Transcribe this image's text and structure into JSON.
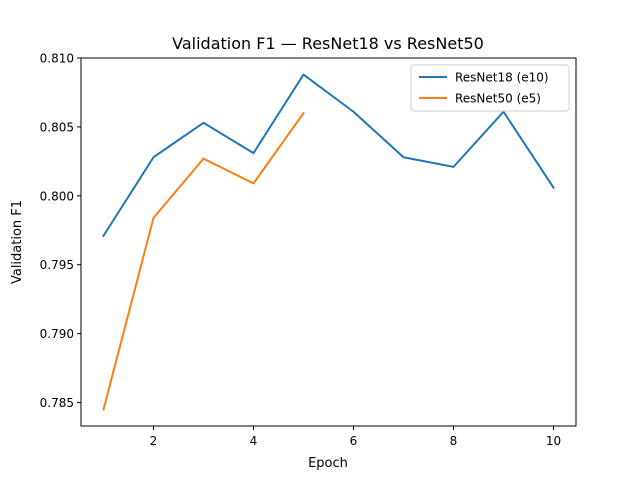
{
  "chart_data": {
    "type": "line",
    "title": "Validation F1 — ResNet18 vs ResNet50",
    "xlabel": "Epoch",
    "ylabel": "Validation F1",
    "xlim": [
      0.55,
      10.45
    ],
    "ylim": [
      0.7833,
      0.81
    ],
    "xticks": [
      2,
      4,
      6,
      8,
      10
    ],
    "xtick_labels": [
      "2",
      "4",
      "6",
      "8",
      "10"
    ],
    "yticks": [
      0.785,
      0.79,
      0.795,
      0.8,
      0.805,
      0.81
    ],
    "ytick_labels": [
      "0.785",
      "0.790",
      "0.795",
      "0.800",
      "0.805",
      "0.810"
    ],
    "grid": false,
    "legend_position": "top-right",
    "series": [
      {
        "name": "ResNet18 (e10)",
        "color": "#1f77b4",
        "x": [
          1,
          2,
          3,
          4,
          5,
          6,
          7,
          8,
          9,
          10
        ],
        "y": [
          0.7971,
          0.8028,
          0.8053,
          0.8031,
          0.8088,
          0.8061,
          0.8028,
          0.8021,
          0.8061,
          0.8006
        ]
      },
      {
        "name": "ResNet50 (e5)",
        "color": "#ff7f0e",
        "x": [
          1,
          2,
          3,
          4,
          5
        ],
        "y": [
          0.7845,
          0.7984,
          0.8027,
          0.8009,
          0.806
        ]
      }
    ]
  }
}
